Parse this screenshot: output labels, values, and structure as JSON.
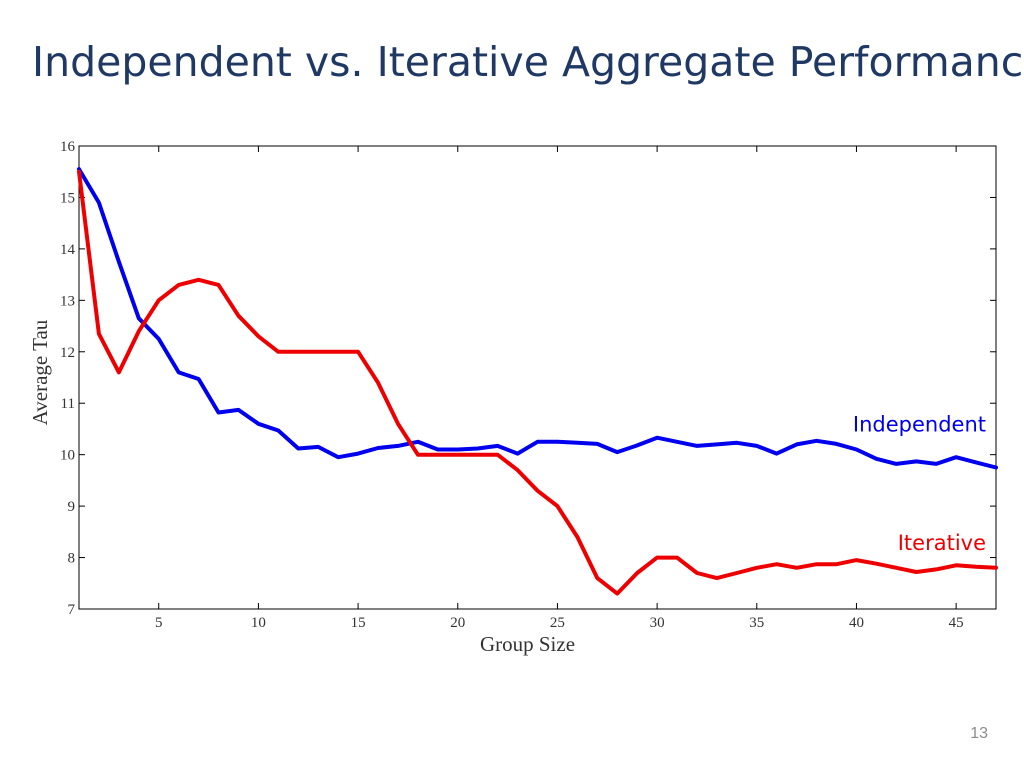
{
  "slide": {
    "title": "Independent vs. Iterative Aggregate Performance",
    "page_number": "13"
  },
  "chart_data": {
    "type": "line",
    "title": "",
    "xlabel": "Group Size",
    "ylabel": "Average Tau",
    "xlim": [
      1,
      47
    ],
    "ylim": [
      7,
      16
    ],
    "xticks": [
      5,
      10,
      15,
      20,
      25,
      30,
      35,
      40,
      45
    ],
    "yticks": [
      7,
      8,
      9,
      10,
      11,
      12,
      13,
      14,
      15,
      16
    ],
    "grid": false,
    "x": [
      1,
      2,
      3,
      4,
      5,
      6,
      7,
      8,
      9,
      10,
      11,
      12,
      13,
      14,
      15,
      16,
      17,
      18,
      19,
      20,
      21,
      22,
      23,
      24,
      25,
      26,
      27,
      28,
      29,
      30,
      31,
      32,
      33,
      34,
      35,
      36,
      37,
      38,
      39,
      40,
      41,
      42,
      43,
      44,
      45,
      46,
      47
    ],
    "series": [
      {
        "name": "Independent",
        "color": "#0000ee",
        "values": [
          15.55,
          14.9,
          13.75,
          12.65,
          12.25,
          11.6,
          11.47,
          10.82,
          10.87,
          10.6,
          10.47,
          10.12,
          10.15,
          9.95,
          10.02,
          10.13,
          10.17,
          10.25,
          10.1,
          10.1,
          10.12,
          10.17,
          10.02,
          10.25,
          10.25,
          10.23,
          10.21,
          10.05,
          10.18,
          10.33,
          10.25,
          10.17,
          10.2,
          10.23,
          10.17,
          10.02,
          10.2,
          10.27,
          10.21,
          10.1,
          9.92,
          9.82,
          9.87,
          9.82,
          9.95,
          9.85,
          9.75
        ]
      },
      {
        "name": "Iterative",
        "color": "#ee0000",
        "values": [
          15.5,
          12.35,
          11.6,
          12.4,
          13.0,
          13.3,
          13.4,
          13.3,
          12.7,
          12.3,
          12.0,
          12.0,
          12.0,
          12.0,
          12.0,
          11.4,
          10.6,
          10.0,
          10.0,
          10.0,
          10.0,
          10.0,
          9.7,
          9.3,
          9.0,
          8.4,
          7.6,
          7.3,
          7.7,
          8.0,
          8.0,
          7.7,
          7.6,
          7.7,
          7.8,
          7.87,
          7.8,
          7.87,
          7.87,
          7.95,
          7.88,
          7.8,
          7.72,
          7.77,
          7.85,
          7.82,
          7.8
        ]
      }
    ],
    "series_labels": [
      {
        "text": "Independent",
        "at_x": 47,
        "at_y": 10.45,
        "color": "#0000ee"
      },
      {
        "text": "Iterative",
        "at_x": 47,
        "at_y": 8.15,
        "color": "#ee0000"
      }
    ]
  }
}
